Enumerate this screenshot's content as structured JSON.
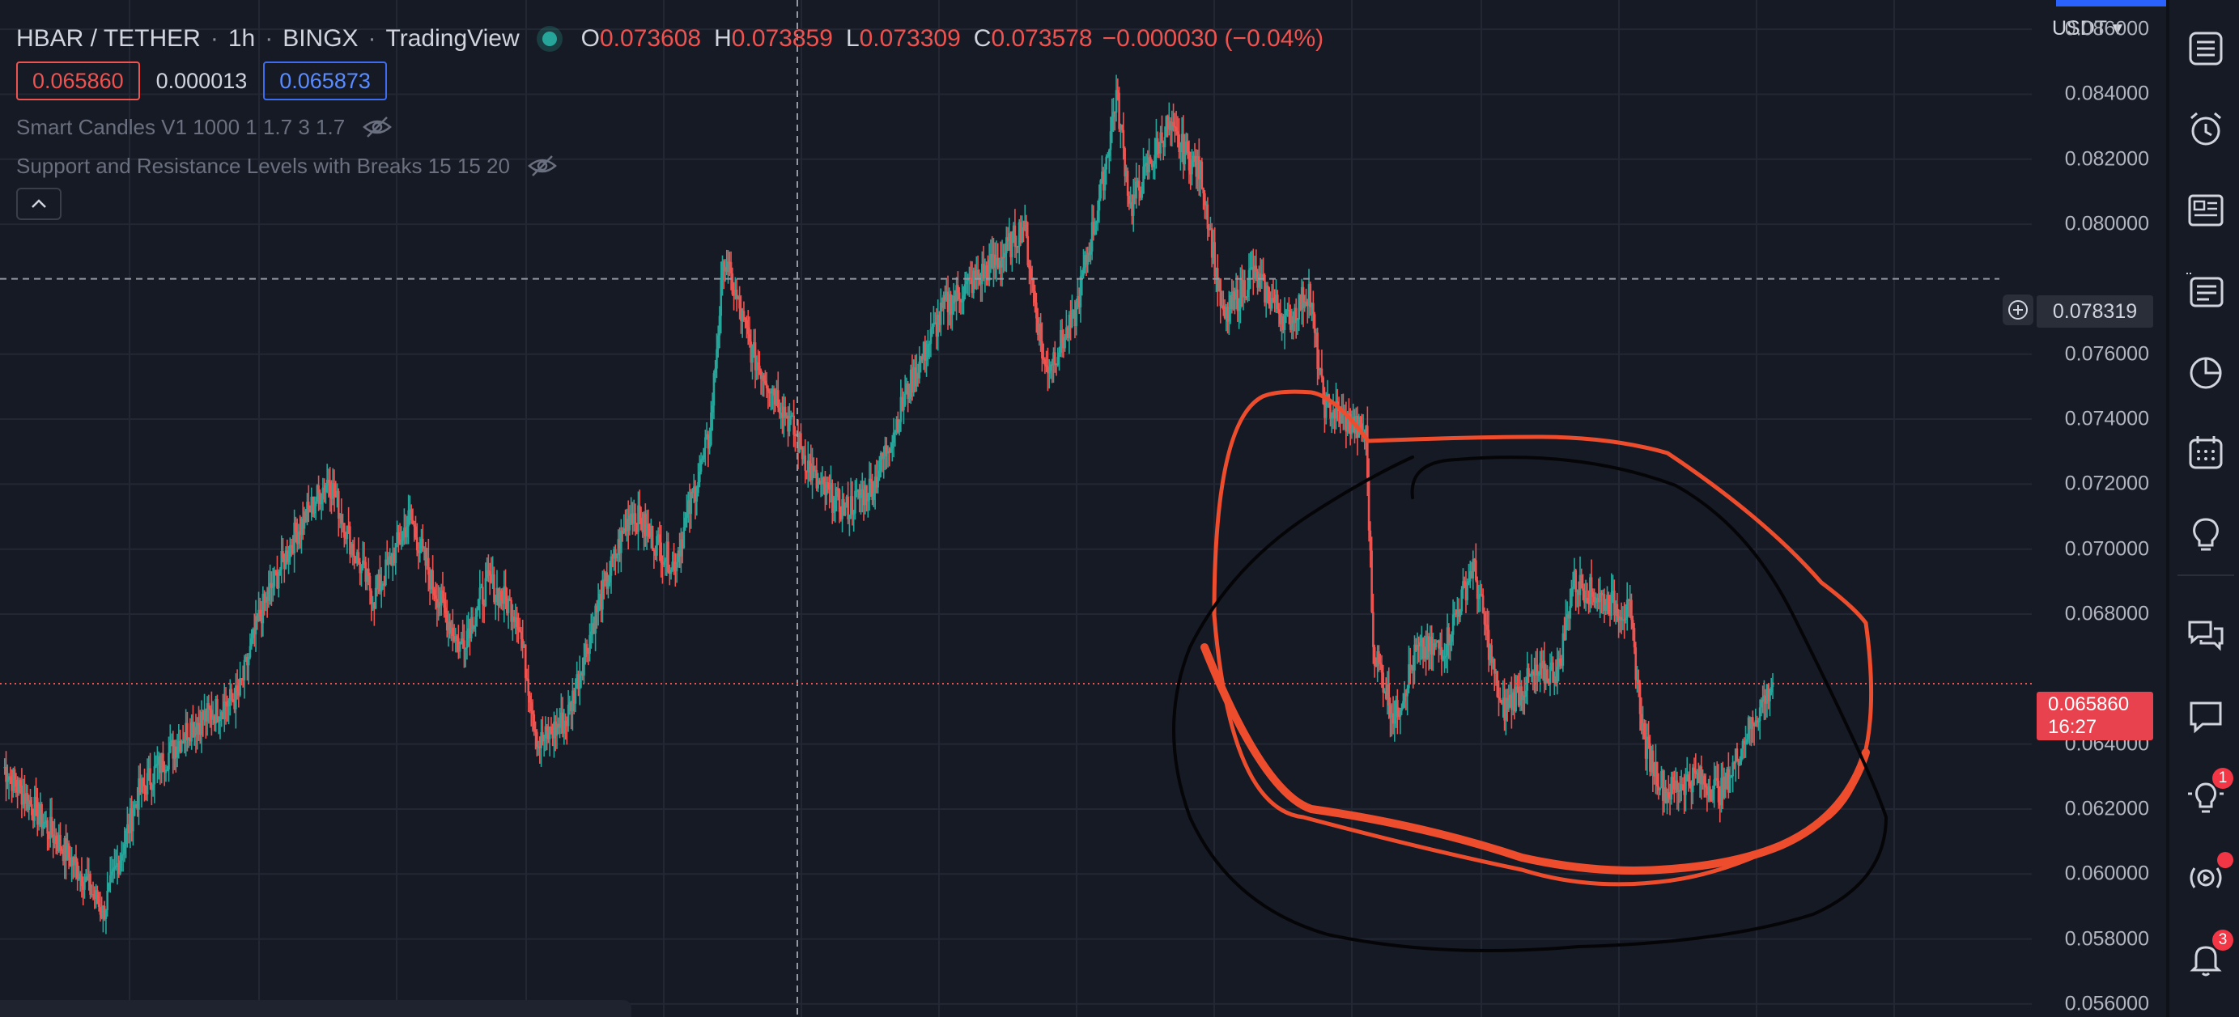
{
  "header": {
    "symbol": "HBAR / TETHER",
    "interval": "1h",
    "exchange": "BINGX",
    "platform": "TradingView",
    "ohlc": {
      "open_key": "O",
      "open": "0.073608",
      "high_key": "H",
      "high": "0.073859",
      "low_key": "L",
      "low": "0.073309",
      "close_key": "C",
      "close": "0.073578",
      "change": "−0.000030 (−0.04%)"
    }
  },
  "quote": {
    "bid": "0.065860",
    "spread": "0.000013",
    "ask": "0.065873"
  },
  "indicators": [
    {
      "label": "Smart Candles V1 1000 1 1.7 3 1.7"
    },
    {
      "label": "Support and Resistance Levels with Breaks 15 15 20"
    }
  ],
  "price_scale": {
    "currency": "USDT",
    "crosshair_price": "0.078319",
    "last_price": "0.065860",
    "countdown": "16:27"
  },
  "colors": {
    "background": "#161a25",
    "up": "#26a69a",
    "down": "#ef5350",
    "last_price_tag": "#e8424f",
    "annotation_orange": "#ee4d2d",
    "annotation_black": "#050507"
  },
  "sidebar": {
    "icons": [
      "watchlist-icon",
      "alert-clock-icon",
      "news-icon",
      "data-window-icon",
      "hotlist-icon",
      "calendar-icon",
      "ideas-icon",
      "chat-icon",
      "messages-icon",
      "idea-stream-icon",
      "streams-icon",
      "notifications-icon"
    ],
    "badges": {
      "idea_stream": "1",
      "notifications": "3"
    }
  },
  "chart_data": {
    "type": "candlestick",
    "title": "HBAR / TETHER · 1h · BINGX",
    "y_axis": {
      "currency": "USDT",
      "ylim": [
        0.0556,
        0.0869
      ],
      "ticks": [
        "0.086000",
        "0.084000",
        "0.082000",
        "0.080000",
        "0.076000",
        "0.074000",
        "0.072000",
        "0.070000",
        "0.068000",
        "0.064000",
        "0.062000",
        "0.060000",
        "0.058000",
        "0.056000"
      ]
    },
    "grid": true,
    "last_price": 0.06586,
    "crosshair_price": 0.078319,
    "price_path_keypoints": [
      [
        0,
        0.0633
      ],
      [
        25,
        0.0618
      ],
      [
        55,
        0.06
      ],
      [
        70,
        0.0588
      ],
      [
        95,
        0.0625
      ],
      [
        130,
        0.0645
      ],
      [
        165,
        0.0655
      ],
      [
        180,
        0.068
      ],
      [
        205,
        0.0705
      ],
      [
        228,
        0.0722
      ],
      [
        245,
        0.07
      ],
      [
        260,
        0.0685
      ],
      [
        285,
        0.071
      ],
      [
        300,
        0.069
      ],
      [
        320,
        0.067
      ],
      [
        340,
        0.069
      ],
      [
        360,
        0.068
      ],
      [
        375,
        0.064
      ],
      [
        395,
        0.0648
      ],
      [
        415,
        0.068
      ],
      [
        440,
        0.0712
      ],
      [
        470,
        0.0695
      ],
      [
        495,
        0.0735
      ],
      [
        505,
        0.079
      ],
      [
        525,
        0.076
      ],
      [
        545,
        0.0745
      ],
      [
        570,
        0.072
      ],
      [
        590,
        0.0712
      ],
      [
        610,
        0.072
      ],
      [
        635,
        0.075
      ],
      [
        660,
        0.0775
      ],
      [
        700,
        0.079
      ],
      [
        715,
        0.08
      ],
      [
        730,
        0.0755
      ],
      [
        750,
        0.077
      ],
      [
        770,
        0.0812
      ],
      [
        780,
        0.084
      ],
      [
        790,
        0.0805
      ],
      [
        815,
        0.083
      ],
      [
        840,
        0.0815
      ],
      [
        855,
        0.077
      ],
      [
        875,
        0.0785
      ],
      [
        900,
        0.077
      ],
      [
        915,
        0.078
      ],
      [
        925,
        0.0745
      ],
      [
        955,
        0.0735
      ],
      [
        960,
        0.067
      ],
      [
        975,
        0.0648
      ],
      [
        990,
        0.0668
      ],
      [
        1010,
        0.067
      ],
      [
        1030,
        0.0695
      ],
      [
        1050,
        0.065
      ],
      [
        1070,
        0.066
      ],
      [
        1090,
        0.0663
      ],
      [
        1100,
        0.069
      ],
      [
        1120,
        0.0685
      ],
      [
        1140,
        0.068
      ],
      [
        1150,
        0.064
      ],
      [
        1165,
        0.0625
      ],
      [
        1185,
        0.063
      ],
      [
        1205,
        0.0625
      ],
      [
        1220,
        0.0642
      ],
      [
        1240,
        0.0659
      ]
    ]
  }
}
